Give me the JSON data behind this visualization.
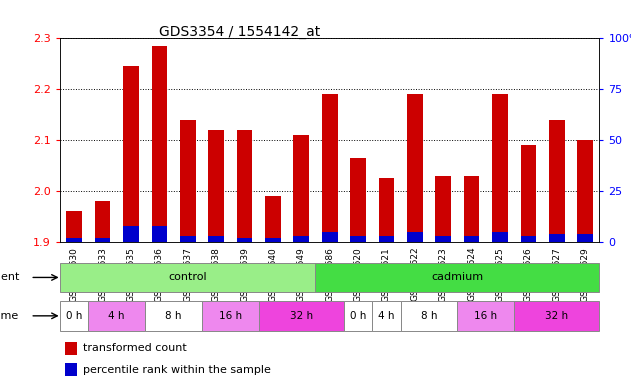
{
  "title": "GDS3354 / 1554142_at",
  "samples": [
    "GSM251630",
    "GSM251633",
    "GSM251635",
    "GSM251636",
    "GSM251637",
    "GSM251638",
    "GSM251639",
    "GSM251640",
    "GSM251649",
    "GSM251686",
    "GSM251620",
    "GSM251621",
    "GSM251622",
    "GSM251623",
    "GSM251624",
    "GSM251625",
    "GSM251626",
    "GSM251627",
    "GSM251629"
  ],
  "transformed_count": [
    1.96,
    1.98,
    2.245,
    2.285,
    2.14,
    2.12,
    2.12,
    1.99,
    2.11,
    2.19,
    2.065,
    2.025,
    2.19,
    2.03,
    2.03,
    2.19,
    2.09,
    2.14,
    2.1
  ],
  "percentile_rank": [
    2,
    2,
    8,
    8,
    3,
    3,
    2,
    2,
    3,
    5,
    3,
    3,
    5,
    3,
    3,
    5,
    3,
    4,
    4
  ],
  "ylim_left": [
    1.9,
    2.3
  ],
  "ylim_right": [
    0,
    100
  ],
  "yticks_left": [
    1.9,
    2.0,
    2.1,
    2.2,
    2.3
  ],
  "yticks_right": [
    0,
    25,
    50,
    75,
    100
  ],
  "bar_color_red": "#cc0000",
  "bar_color_blue": "#0000cc",
  "agent_groups": [
    {
      "label": "control",
      "start": 0,
      "end": 9,
      "color": "#99ee88"
    },
    {
      "label": "cadmium",
      "start": 9,
      "end": 19,
      "color": "#44dd44"
    }
  ],
  "time_groups": [
    {
      "label": "0 h",
      "start": 0,
      "end": 1,
      "color": "#ffffff"
    },
    {
      "label": "4 h",
      "start": 1,
      "end": 3,
      "color": "#ee88ee"
    },
    {
      "label": "8 h",
      "start": 3,
      "end": 5,
      "color": "#ffffff"
    },
    {
      "label": "16 h",
      "start": 5,
      "end": 7,
      "color": "#ee88ee"
    },
    {
      "label": "32 h",
      "start": 7,
      "end": 10,
      "color": "#ee44dd"
    },
    {
      "label": "0 h",
      "start": 10,
      "end": 11,
      "color": "#ffffff"
    },
    {
      "label": "4 h",
      "start": 11,
      "end": 12,
      "color": "#ffffff"
    },
    {
      "label": "8 h",
      "start": 12,
      "end": 14,
      "color": "#ffffff"
    },
    {
      "label": "16 h",
      "start": 14,
      "end": 16,
      "color": "#ee88ee"
    },
    {
      "label": "32 h",
      "start": 16,
      "end": 19,
      "color": "#ee44dd"
    }
  ],
  "legend_red_label": "transformed count",
  "legend_blue_label": "percentile rank within the sample",
  "agent_label": "agent",
  "time_label": "time"
}
